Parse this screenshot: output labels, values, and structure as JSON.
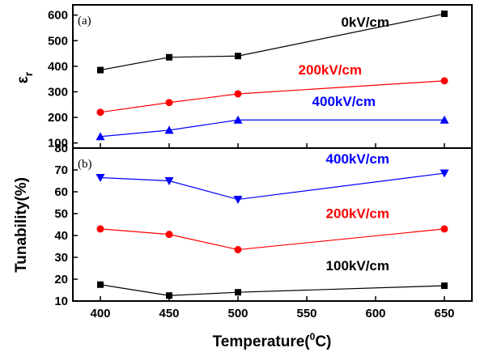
{
  "chart_data": [
    {
      "type": "line",
      "panel_label": "(a)",
      "ylabel": "εr",
      "ylabel_main": "ε",
      "ylabel_sub": "r",
      "xlabel": "",
      "x": [
        400,
        450,
        500,
        650
      ],
      "xlim": [
        380,
        670
      ],
      "ylim": [
        80,
        640
      ],
      "yticks": [
        100,
        200,
        300,
        400,
        500,
        600
      ],
      "grid": false,
      "series": [
        {
          "name": "0kV/cm",
          "color": "#000000",
          "marker": "square",
          "values": [
            385,
            435,
            440,
            605
          ],
          "label_x": 610,
          "label_y": 555
        },
        {
          "name": "200kV/cm",
          "color": "#ff0000",
          "marker": "circle",
          "values": [
            220,
            258,
            292,
            343
          ],
          "label_x": 590,
          "label_y": 368
        },
        {
          "name": "400kV/cm",
          "color": "#0000ff",
          "marker": "triangle-up",
          "values": [
            125,
            150,
            190,
            190
          ],
          "label_x": 600,
          "label_y": 245
        }
      ]
    },
    {
      "type": "line",
      "panel_label": "(b)",
      "ylabel": "Tunability(%)",
      "xlabel": "Temperature(0C)",
      "xlabel_pre": "Temperature(",
      "xlabel_sup": "0",
      "xlabel_post": "C)",
      "x": [
        400,
        450,
        500,
        650
      ],
      "xlim": [
        380,
        670
      ],
      "ylim": [
        10,
        80
      ],
      "yticks": [
        10,
        20,
        30,
        40,
        50,
        60,
        70,
        80
      ],
      "xticks": [
        400,
        450,
        500,
        550,
        600,
        650
      ],
      "grid": false,
      "series": [
        {
          "name": "400kV/cm",
          "color": "#0000ff",
          "marker": "triangle-down",
          "values": [
            66.5,
            65,
            56.5,
            68.5
          ],
          "label_x": 610,
          "label_y": 73
        },
        {
          "name": "200kV/cm",
          "color": "#ff0000",
          "marker": "circle",
          "values": [
            43,
            40.5,
            33.5,
            43
          ],
          "label_x": 610,
          "label_y": 48
        },
        {
          "name": "100kV/cm",
          "color": "#000000",
          "marker": "square",
          "values": [
            17.5,
            12.5,
            14,
            17
          ],
          "label_x": 610,
          "label_y": 24
        }
      ]
    }
  ]
}
